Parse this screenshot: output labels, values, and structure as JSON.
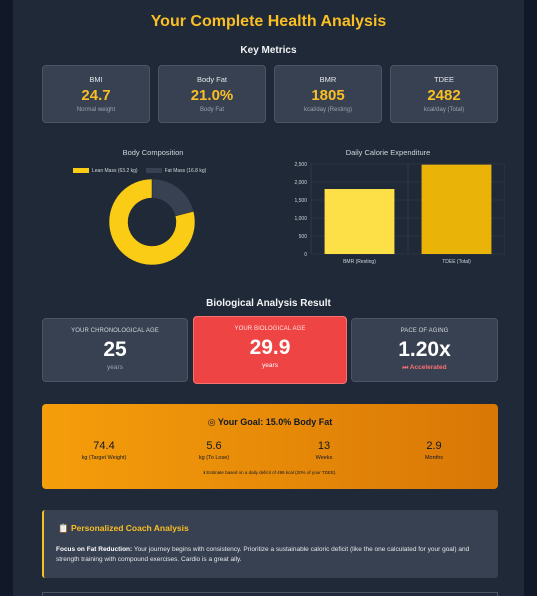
{
  "page": {
    "title": "Your Complete Health Analysis"
  },
  "key_metrics": {
    "heading": "Key Metrics",
    "cards": [
      {
        "label": "BMI",
        "value": "24.7",
        "sub": "Normal weight"
      },
      {
        "label": "Body Fat",
        "value": "21.0%",
        "sub": "Body Fat"
      },
      {
        "label": "BMR",
        "value": "1805",
        "sub": "kcal/day (Resting)"
      },
      {
        "label": "TDEE",
        "value": "2482",
        "sub": "kcal/day (Total)"
      }
    ]
  },
  "charts": {
    "composition_title": "Body Composition",
    "calorie_title": "Daily Calorie Expenditure"
  },
  "chart_data": [
    {
      "type": "pie",
      "title": "Body Composition",
      "categories": [
        "Lean Mass (63.2 kg)",
        "Fat Mass (16.8 kg)"
      ],
      "values": [
        63.2,
        16.8
      ],
      "colors": [
        "#facc15",
        "#374151"
      ],
      "legend": "top"
    },
    {
      "type": "bar",
      "title": "Daily Calorie Expenditure",
      "categories": [
        "BMR (Resting)",
        "TDEE (Total)"
      ],
      "values": [
        1805,
        2482
      ],
      "colors": [
        "#fde047",
        "#eab308"
      ],
      "ylim": [
        0,
        2500
      ],
      "yticks": [
        "0",
        "500",
        "1,000",
        "1,500",
        "2,000",
        "2,500"
      ],
      "grid": true
    }
  ],
  "bio": {
    "heading": "Biological Analysis Result",
    "chrono": {
      "label": "YOUR CHRONOLOGICAL AGE",
      "value": "25",
      "sub": "years"
    },
    "biological": {
      "label": "YOUR BIOLOGICAL AGE",
      "value": "29.9",
      "sub": "years"
    },
    "pace": {
      "label": "PACE OF AGING",
      "value": "1.20x",
      "sub": "Accelerated",
      "sub_icon": "fast-forward-icon"
    }
  },
  "goal": {
    "title": "Your Goal: 15.0% Body Fat",
    "icon": "target-icon",
    "stats": [
      {
        "value": "74.4",
        "label": "kg (Target Weight)"
      },
      {
        "value": "5.6",
        "label": "kg (To Lose)"
      },
      {
        "value": "13",
        "label": "Weeks"
      },
      {
        "value": "2.9",
        "label": "Months"
      }
    ],
    "note": "Estimate based on a daily deficit of 496 kcal (20% of your TDEE)."
  },
  "coach": {
    "icon": "clipboard-icon",
    "title": "Personalized Coach Analysis",
    "focus": "Focus on Fat Reduction:",
    "text": " Your journey begins with consistency. Prioritize a sustainable caloric deficit (like the one calculated for your goal) and strength training with compound exercises. Cardio is a great ally."
  },
  "colors": {
    "accent": "#fbbf24",
    "background": "#111827",
    "panel": "#1f2937",
    "card": "#374151",
    "danger": "#ef4444",
    "pace_text": "#f87171"
  }
}
